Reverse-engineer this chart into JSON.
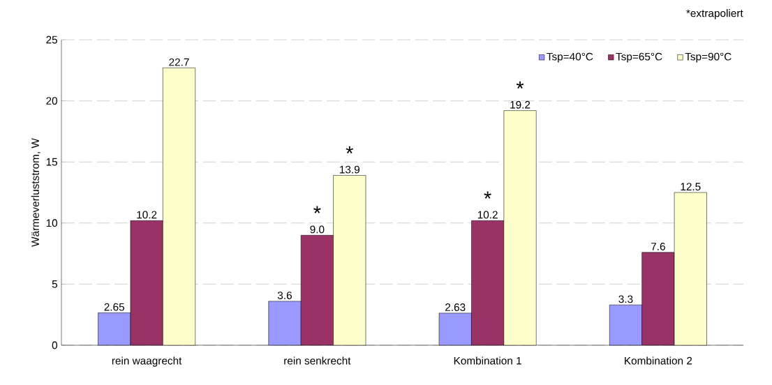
{
  "chart_data": {
    "type": "bar",
    "ylabel": "Wärmeverluststrom, W",
    "categories": [
      "rein waagrecht",
      "rein senkrecht",
      "Kombination 1",
      "Kombination 2"
    ],
    "series": [
      {
        "name": "Tsp=40°C",
        "color": "#9999ff",
        "values": [
          2.65,
          3.6,
          2.63,
          3.3
        ],
        "value_labels": [
          "2.65",
          "3.6",
          "2.63",
          "3.3"
        ]
      },
      {
        "name": "Tsp=65°C",
        "color": "#993366",
        "values": [
          10.2,
          9.0,
          10.2,
          7.6
        ],
        "value_labels": [
          "10.2",
          "9.0",
          "10.2",
          "7.6"
        ]
      },
      {
        "name": "Tsp=90°C",
        "color": "#ffffcc",
        "values": [
          22.7,
          13.9,
          19.2,
          12.5
        ],
        "value_labels": [
          "22.7",
          "13.9",
          "19.2",
          "12.5"
        ]
      }
    ],
    "ylim": [
      0,
      25
    ],
    "yticks": [
      0,
      5,
      10,
      15,
      20,
      25
    ],
    "grid": "y",
    "legend": "top right",
    "annotations": [
      "*extrapoliert",
      {
        "text": "*",
        "x": "rein senkrecht",
        "y": 9.0
      },
      {
        "text": "*",
        "y": 13.9
      },
      {
        "text": "*",
        "x": "Kombination 1",
        "y": 10.2
      },
      {
        "text": "*",
        "y": 19.2
      }
    ]
  }
}
